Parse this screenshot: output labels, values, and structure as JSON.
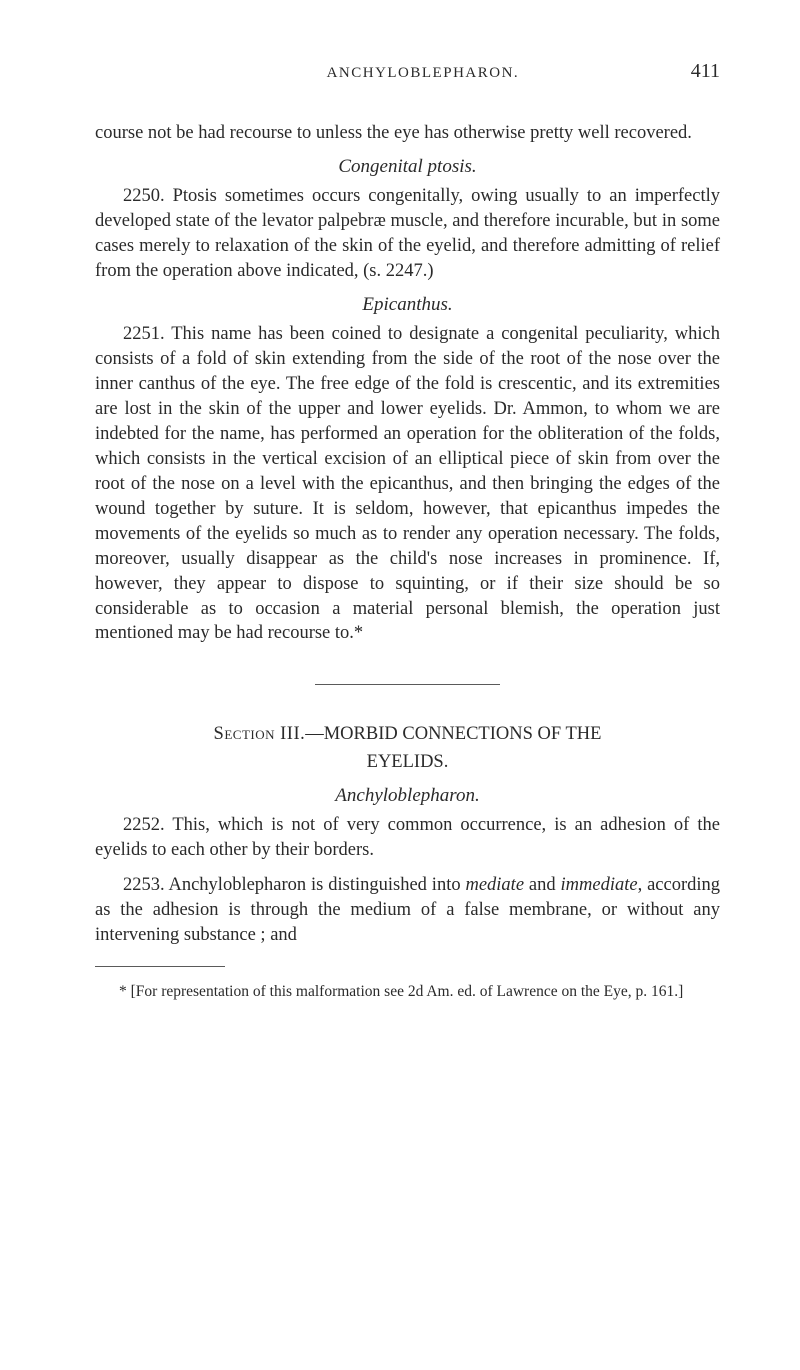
{
  "page": {
    "running_head": "ANCHYLOBLEPHARON.",
    "page_number": "411"
  },
  "body": {
    "p1": "course not be had recourse to unless the eye has otherwise pretty well recovered.",
    "sub1": "Congenital ptosis.",
    "p2": "2250. Ptosis sometimes occurs congenitally, owing usually to an imperfectly developed state of the levator palpebræ muscle, and therefore incurable, but in some cases merely to relaxation of the skin of the eyelid, and therefore admitting of relief from the operation above indicated, (s. 2247.)",
    "sub2": "Epicanthus.",
    "p3": "2251. This name has been coined to designate a congenital peculiarity, which consists of a fold of skin extending from the side of the root of the nose over the inner canthus of the eye. The free edge of the fold is crescentic, and its extremities are lost in the skin of the upper and lower eyelids. Dr. Ammon, to whom we are indebted for the name, has performed an operation for the obliteration of the folds, which consists in the vertical excision of an elliptical piece of skin from over the root of the nose on a level with the epicanthus, and then bringing the edges of the wound together by suture. It is seldom, however, that epicanthus impedes the movements of the eyelids so much as to render any operation necessary. The folds, moreover, usually disappear as the child's nose increases in prominence. If, however, they appear to dispose to squinting, or if their size should be so considerable as to occasion a material personal blemish, the operation just mentioned may be had recourse to.*",
    "section_label": "Section III.",
    "section_title_1": "—MORBID CONNECTIONS OF THE",
    "section_title_2": "EYELIDS.",
    "sub3": "Anchyloblepharon.",
    "p4_a": "2252. This, which is not of very common occurrence, is an adhesion of the eyelids to each other by their borders.",
    "p4_b_prefix": "2253. Anchyloblepharon is distinguished into ",
    "p4_b_em1": "mediate",
    "p4_b_mid": " and ",
    "p4_b_em2": "immediate",
    "p4_b_suffix": ", according as the adhesion is through the medium of a false membrane, or without any intervening substance ; and",
    "footnote": "* [For representation of this malformation see 2d Am. ed. of Lawrence on the Eye, p. 161.]"
  },
  "style": {
    "background_color": "#ffffff",
    "text_color": "#2a2a2a",
    "body_fontsize": 18.5,
    "footnote_fontsize": 15.5,
    "line_height": 1.35
  }
}
